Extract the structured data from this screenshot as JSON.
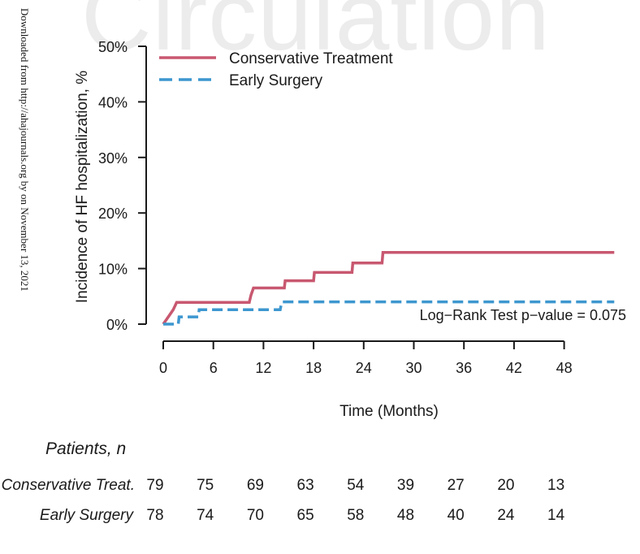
{
  "watermark": "Circulation",
  "side_note": "Downloaded from http://ahajournals.org by on November 13, 2021",
  "chart_data": {
    "type": "line",
    "title": "",
    "xlabel": "Time (Months)",
    "ylabel": "Incidence of HF hospitalization, %",
    "xlim": [
      0,
      48
    ],
    "ylim": [
      0,
      50
    ],
    "x_ticks": [
      "0",
      "6",
      "12",
      "18",
      "24",
      "30",
      "36",
      "42",
      "48"
    ],
    "y_ticks": [
      "0%",
      "10%",
      "20%",
      "30%",
      "40%",
      "50%"
    ],
    "legend_position": "top-left",
    "annotation": "Log−Rank Test p−value = 0.075",
    "colors": {
      "conservative": "#c85870",
      "surgery": "#3d97cf"
    },
    "series": [
      {
        "name": "Conservative Treatment",
        "style": "solid",
        "points": [
          [
            0,
            0
          ],
          [
            0.6,
            1.3
          ],
          [
            1.2,
            2.6
          ],
          [
            1.6,
            3.9
          ],
          [
            10.3,
            3.9
          ],
          [
            10.5,
            5.2
          ],
          [
            10.8,
            6.5
          ],
          [
            14.5,
            6.5
          ],
          [
            14.6,
            7.8
          ],
          [
            18,
            7.8
          ],
          [
            18.1,
            9.3
          ],
          [
            22.6,
            9.3
          ],
          [
            22.7,
            11
          ],
          [
            26.2,
            11
          ],
          [
            26.3,
            12.9
          ],
          [
            54,
            12.9
          ]
        ]
      },
      {
        "name": "Early Surgery",
        "style": "dashed",
        "points": [
          [
            0,
            0
          ],
          [
            1.8,
            0
          ],
          [
            1.9,
            1.3
          ],
          [
            4.2,
            1.3
          ],
          [
            4.3,
            2.6
          ],
          [
            14,
            2.6
          ],
          [
            14.2,
            4
          ],
          [
            54,
            4
          ]
        ]
      }
    ]
  },
  "risk_table": {
    "title": "Patients, n",
    "rows": [
      {
        "label": "Conservative Treat.",
        "values": [
          "79",
          "75",
          "69",
          "63",
          "54",
          "39",
          "27",
          "20",
          "13"
        ]
      },
      {
        "label": "Early Surgery",
        "values": [
          "78",
          "74",
          "70",
          "65",
          "58",
          "48",
          "40",
          "24",
          "14"
        ]
      }
    ]
  }
}
